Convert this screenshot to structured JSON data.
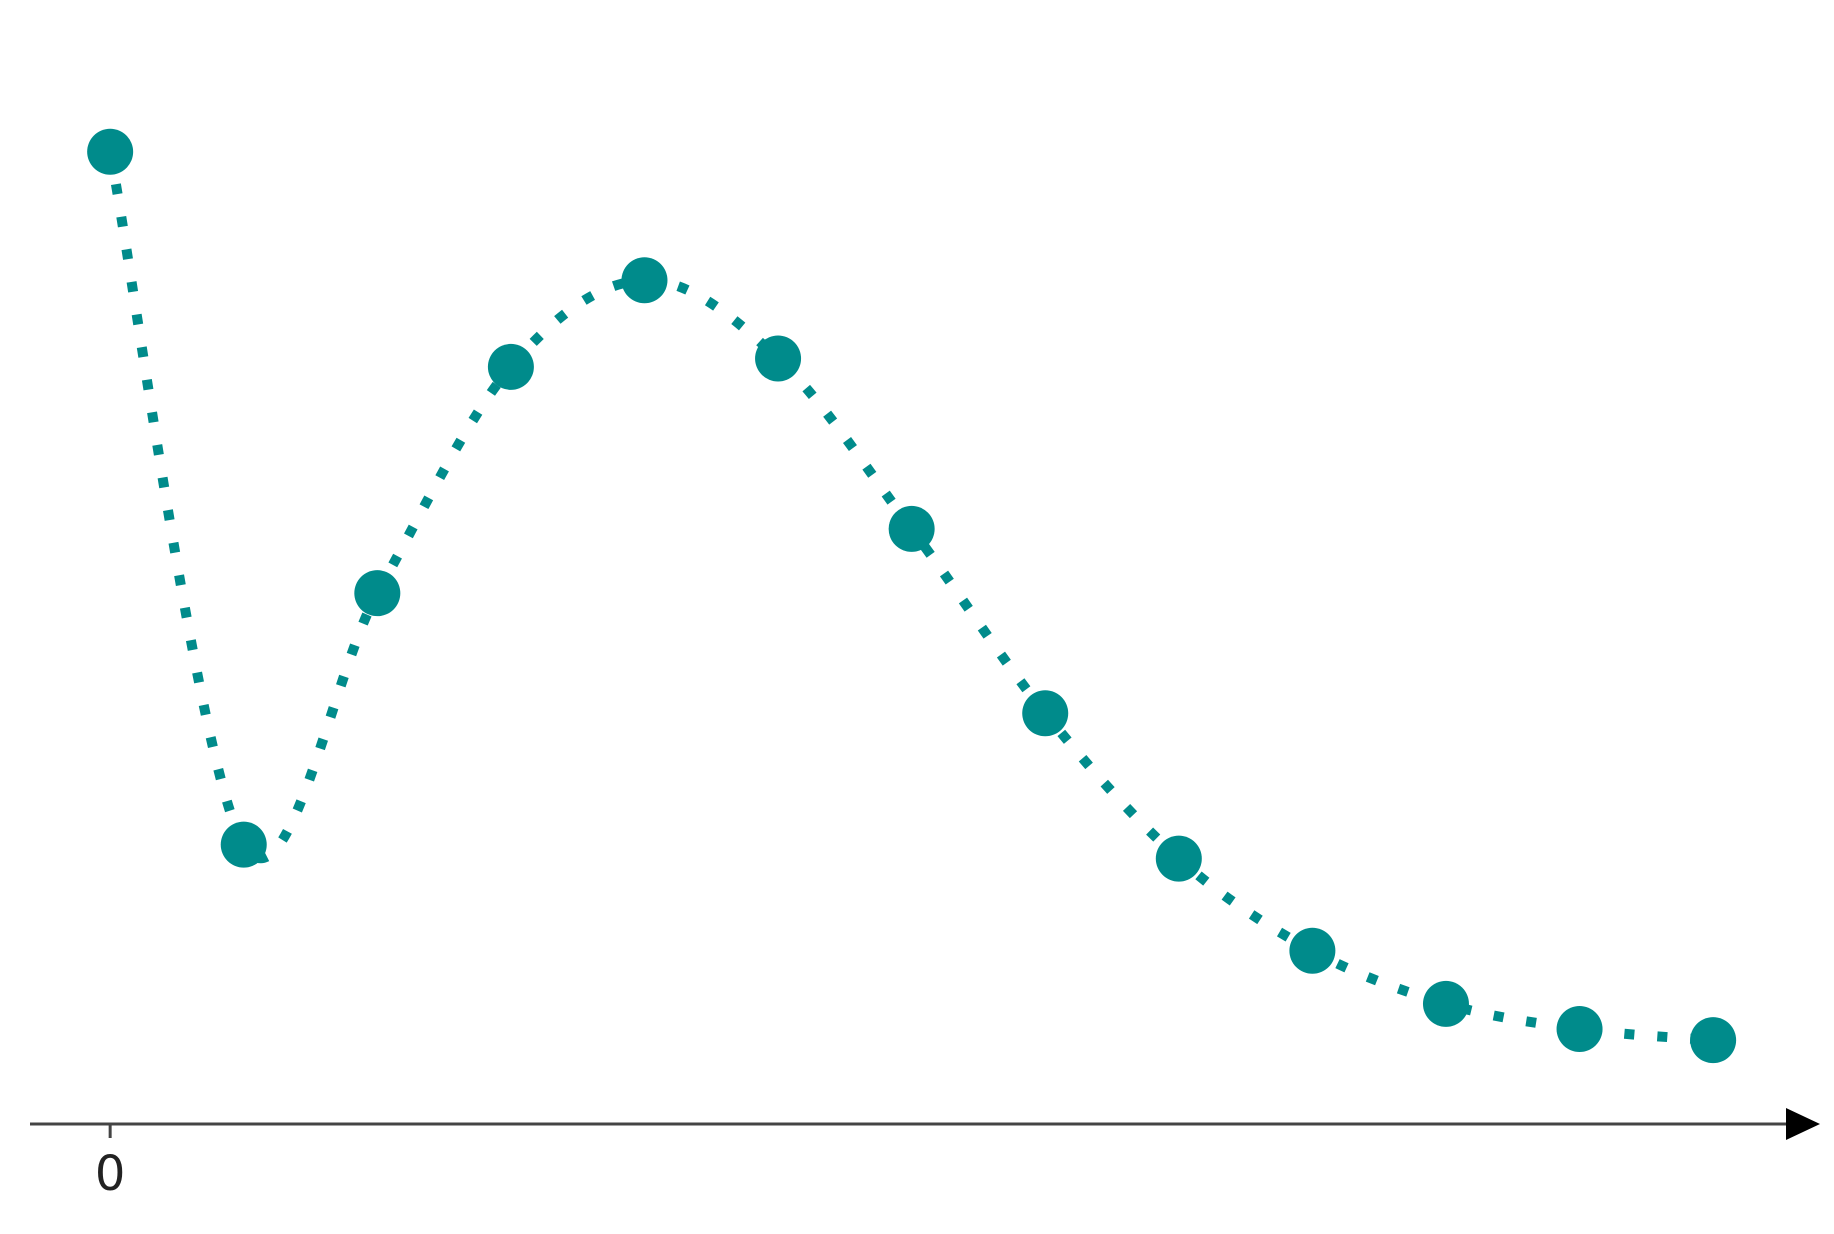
{
  "chart_data": {
    "type": "line",
    "title": "",
    "xlabel": "",
    "ylabel": "",
    "x_ticks": [
      {
        "value": 0,
        "label": "0"
      }
    ],
    "xlim": [
      -0.6,
      12.8
    ],
    "ylim": [
      -0.28,
      3.6
    ],
    "grid": false,
    "line_style": "dotted",
    "color": "#008B8B",
    "axis_color": "#444444",
    "arrow_color": "#000000",
    "series": [
      {
        "x": [
          0,
          1,
          2,
          3,
          4,
          5,
          6,
          7,
          8,
          9,
          10,
          11,
          12
        ],
        "y": [
          3.2,
          0.72,
          1.62,
          2.43,
          2.74,
          2.46,
          1.85,
          1.19,
          0.67,
          0.34,
          0.15,
          0.06,
          0.02
        ]
      }
    ]
  }
}
